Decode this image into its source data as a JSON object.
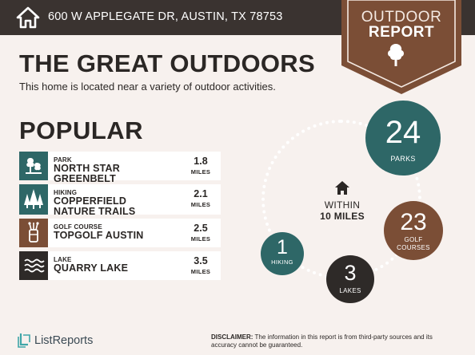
{
  "header": {
    "address": "600 W APPLEGATE DR, AUSTIN, TX 78753",
    "badge_line1": "OUTDOOR",
    "badge_line2": "REPORT"
  },
  "title": "THE GREAT OUTDOORS",
  "subtitle": "This home is located near a variety of outdoor activities.",
  "popular": {
    "heading": "POPULAR",
    "items": [
      {
        "category": "PARK",
        "name": "NORTH STAR GREENBELT",
        "distance": "1.8",
        "unit": "MILES",
        "icon": "park-icon",
        "color": "#2e6767"
      },
      {
        "category": "HIKING",
        "name": "COPPERFIELD NATURE TRAILS",
        "distance": "2.1",
        "unit": "MILES",
        "icon": "trees-icon",
        "color": "#2e6767"
      },
      {
        "category": "GOLF COURSE",
        "name": "TOPGOLF AUSTIN",
        "distance": "2.5",
        "unit": "MILES",
        "icon": "golf-bag-icon",
        "color": "#7b4e36"
      },
      {
        "category": "LAKE",
        "name": "QUARRY LAKE",
        "distance": "3.5",
        "unit": "MILES",
        "icon": "waves-icon",
        "color": "#2e2a28"
      }
    ]
  },
  "radius": {
    "line1": "WITHIN",
    "line2": "10 MILES"
  },
  "counts": {
    "parks": {
      "value": "24",
      "label": "PARKS"
    },
    "golf": {
      "value": "23",
      "label": "GOLF COURSES"
    },
    "hiking": {
      "value": "1",
      "label": "HIKING"
    },
    "lakes": {
      "value": "3",
      "label": "LAKES"
    }
  },
  "footer": {
    "logo": "ListReports",
    "disclaimer_label": "DISCLAIMER:",
    "disclaimer_text": "The information in this report is from third-party sources and its accuracy cannot be guaranteed."
  },
  "colors": {
    "teal": "#2e6767",
    "brown": "#7b4e36",
    "dark": "#2e2a28",
    "background": "#f7f1ee"
  }
}
